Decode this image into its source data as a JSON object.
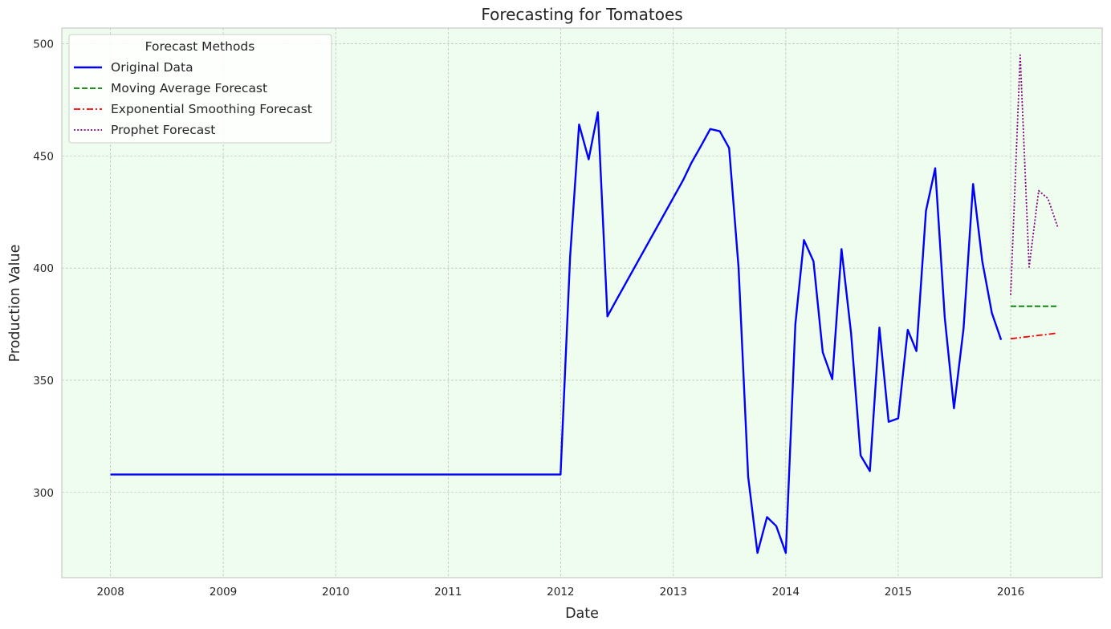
{
  "chart_data": {
    "type": "line",
    "title": "Forecasting for Tomatoes",
    "xlabel": "Date",
    "ylabel": "Production Value",
    "xlim": [
      "2007-07-27",
      "2016-10-24"
    ],
    "ylim": [
      262,
      507
    ],
    "x_ticks": [
      "2008",
      "2009",
      "2010",
      "2011",
      "2012",
      "2013",
      "2014",
      "2015",
      "2016"
    ],
    "y_ticks": [
      300,
      350,
      400,
      450,
      500
    ],
    "grid": true,
    "background_color": "#effdef",
    "legend": {
      "title": "Forecast Methods",
      "placement": "top-left"
    },
    "series": [
      {
        "name": "Original Data",
        "color": "#0000ff",
        "style": "solid",
        "points": [
          [
            "2008-01-01",
            308
          ],
          [
            "2012-01-01",
            308
          ],
          [
            "2012-02-01",
            405
          ],
          [
            "2012-03-01",
            464
          ],
          [
            "2012-04-01",
            448.5
          ],
          [
            "2012-05-01",
            469.5
          ],
          [
            "2012-06-01",
            378.5
          ],
          [
            "2012-07-01",
            386
          ],
          [
            "2013-02-01",
            439
          ],
          [
            "2013-03-01",
            447
          ],
          [
            "2013-04-01",
            454.5
          ],
          [
            "2013-05-01",
            462
          ],
          [
            "2013-06-01",
            461
          ],
          [
            "2013-07-01",
            453.5
          ],
          [
            "2013-08-01",
            400
          ],
          [
            "2013-09-01",
            307
          ],
          [
            "2013-10-01",
            273
          ],
          [
            "2013-11-01",
            289
          ],
          [
            "2013-12-01",
            285
          ],
          [
            "2014-01-01",
            273
          ],
          [
            "2014-02-01",
            375
          ],
          [
            "2014-03-01",
            412.5
          ],
          [
            "2014-04-01",
            403
          ],
          [
            "2014-05-01",
            362.5
          ],
          [
            "2014-06-01",
            350.5
          ],
          [
            "2014-07-01",
            408.5
          ],
          [
            "2014-08-01",
            371
          ],
          [
            "2014-09-01",
            316.5
          ],
          [
            "2014-10-01",
            309.5
          ],
          [
            "2014-11-01",
            373.5
          ],
          [
            "2014-12-01",
            331.5
          ],
          [
            "2015-01-01",
            333
          ],
          [
            "2015-02-01",
            372.5
          ],
          [
            "2015-03-01",
            363
          ],
          [
            "2015-04-01",
            425.5
          ],
          [
            "2015-05-01",
            444.5
          ],
          [
            "2015-06-01",
            378
          ],
          [
            "2015-07-01",
            337.5
          ],
          [
            "2015-08-01",
            373
          ],
          [
            "2015-09-01",
            437.5
          ],
          [
            "2015-10-01",
            403
          ],
          [
            "2015-11-01",
            380
          ],
          [
            "2015-12-01",
            368
          ]
        ]
      },
      {
        "name": "Moving Average Forecast",
        "color": "#008000",
        "style": "dashed",
        "points": [
          [
            "2016-01-01",
            383
          ],
          [
            "2016-06-01",
            383
          ]
        ]
      },
      {
        "name": "Exponential Smoothing Forecast",
        "color": "#ff0000",
        "style": "dashdot",
        "points": [
          [
            "2016-01-01",
            368.5
          ],
          [
            "2016-06-01",
            371
          ]
        ]
      },
      {
        "name": "Prophet Forecast",
        "color": "#800080",
        "style": "dotted",
        "points": [
          [
            "2016-01-01",
            388
          ],
          [
            "2016-02-01",
            495
          ],
          [
            "2016-03-01",
            400.5
          ],
          [
            "2016-04-01",
            434.5
          ],
          [
            "2016-05-01",
            431
          ],
          [
            "2016-06-01",
            418.5
          ]
        ]
      }
    ]
  }
}
